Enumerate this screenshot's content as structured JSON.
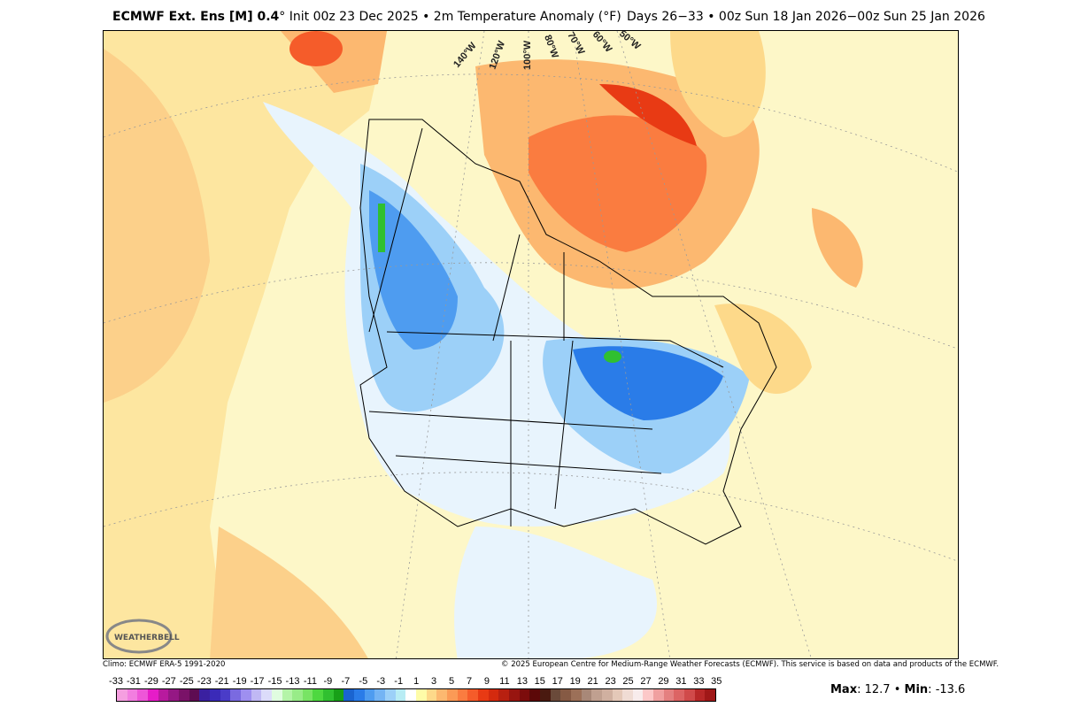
{
  "header": {
    "model": "ECMWF Ext. Ens [M] 0.4",
    "deg": "°",
    "init": "Init 00z 23 Dec 2025",
    "bullet": "•",
    "variable": "2m Temperature Anomaly (°F)",
    "valid": "Days 26−33 • 00z Sun 18 Jan 2026−00z Sun 25 Jan 2026"
  },
  "map": {
    "longitude_labels": [
      "140°W",
      "120°W",
      "100°W",
      "80°W",
      "70°W",
      "60°W",
      "50°W"
    ],
    "logo": "WeatherBELL Analytics LLC"
  },
  "footer": {
    "climo": "Climo: ECMWF ERA-5 1991-2020",
    "copyright": "© 2025 European Centre for Medium-Range Weather Forecasts (ECMWF). This service is based on data and products of the ECMWF."
  },
  "colorbar": {
    "labels": [
      "-33",
      "-31",
      "-29",
      "-27",
      "-25",
      "-23",
      "-21",
      "-19",
      "-17",
      "-15",
      "-13",
      "-11",
      "-9",
      "-7",
      "-5",
      "-3",
      "-1",
      "1",
      "3",
      "5",
      "7",
      "9",
      "11",
      "13",
      "15",
      "17",
      "19",
      "21",
      "23",
      "25",
      "27",
      "29",
      "31",
      "33",
      "35"
    ],
    "colors": [
      "#f59fe0",
      "#f27ee0",
      "#ee56d8",
      "#e61cc8",
      "#b81a9e",
      "#951884",
      "#7a1268",
      "#5e0c52",
      "#3a20a0",
      "#3a2ab8",
      "#4a3cc8",
      "#7a6ae0",
      "#9e8ff0",
      "#c0b8f4",
      "#dcdcfa",
      "#e0fce0",
      "#b4f4a8",
      "#98ec88",
      "#78e464",
      "#4ed840",
      "#30c030",
      "#18a018",
      "#1a64d0",
      "#2a7ce8",
      "#4e9cf0",
      "#74b4f4",
      "#9cd0f8",
      "#b8ecf4",
      "#ffffff",
      "#fefca8",
      "#fdd98a",
      "#fcb870",
      "#fb9a56",
      "#fa7c40",
      "#f55c2a",
      "#e83a14",
      "#d42a0e",
      "#b82010",
      "#981510",
      "#7c0c0c",
      "#5c0808",
      "#4a1a10",
      "#6a4a3a",
      "#865a44",
      "#9c7058",
      "#a88878",
      "#c0a090",
      "#d0b0a0",
      "#e4c8b8",
      "#f0dcd4",
      "#f8ecec",
      "#fcc8c8",
      "#f0a0a0",
      "#e48080",
      "#dc6464",
      "#d04a4a",
      "#b82828",
      "#a01818"
    ],
    "max_label": "Max",
    "max": "12.7",
    "min_label": "Min",
    "min": "-13.6"
  }
}
